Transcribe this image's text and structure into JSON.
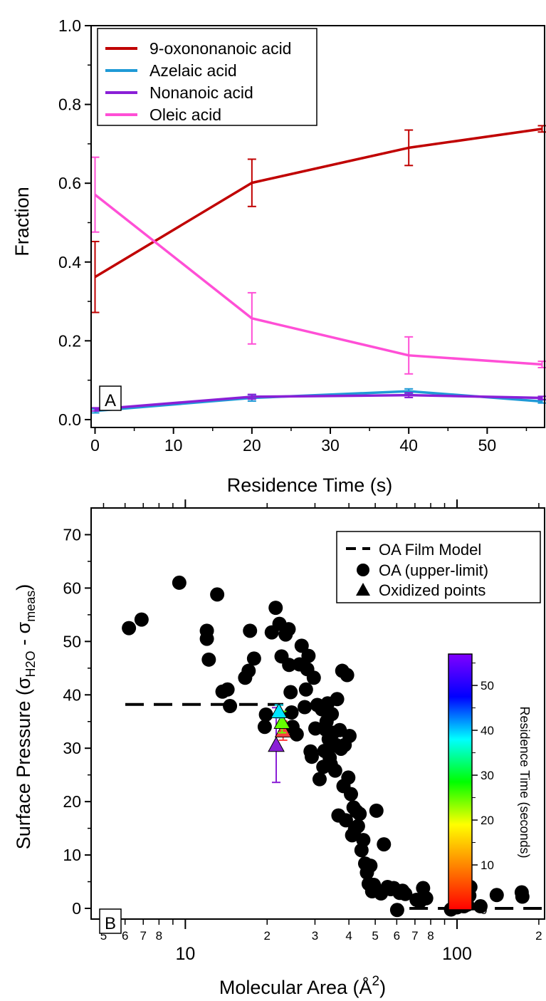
{
  "chart_data": [
    {
      "type": "line",
      "panel_label": "A",
      "xlabel": "Residence Time (s)",
      "ylabel": "Fraction",
      "xlim": [
        -0.5,
        57.5
      ],
      "ylim": [
        -0.02,
        1.0
      ],
      "xticks": [
        0,
        10,
        20,
        30,
        40,
        50
      ],
      "yticks": [
        0.0,
        0.2,
        0.4,
        0.6,
        0.8,
        1.0
      ],
      "yticklabels": [
        "0.0",
        "0.2",
        "0.4",
        "0.6",
        "0.8",
        "1.0"
      ],
      "legend_position": "top-left",
      "x": [
        0,
        20,
        40,
        57
      ],
      "series": [
        {
          "name": "9-oxononanoic acid",
          "color": "#c00000",
          "values": [
            0.362,
            0.601,
            0.69,
            0.738
          ],
          "errors": [
            0.09,
            0.06,
            0.045,
            0.008
          ]
        },
        {
          "name": "Azelaic acid",
          "color": "#1f9ad6",
          "values": [
            0.022,
            0.055,
            0.072,
            0.046
          ],
          "errors": [
            0.005,
            0.008,
            0.006,
            0.004
          ]
        },
        {
          "name": "Nonanoic acid",
          "color": "#8a1fd6",
          "values": [
            0.026,
            0.058,
            0.062,
            0.055
          ],
          "errors": [
            0.004,
            0.006,
            0.006,
            0.004
          ]
        },
        {
          "name": "Oleic acid",
          "color": "#ff4fd6",
          "values": [
            0.571,
            0.257,
            0.163,
            0.14
          ],
          "errors": [
            0.095,
            0.065,
            0.047,
            0.008
          ]
        }
      ]
    },
    {
      "type": "scatter",
      "panel_label": "B",
      "xlabel_prefix": "Molecular Area (Å",
      "xlabel_sup": "2",
      "xlabel_suffix": ")",
      "ylabel_prefix": "Surface Pressure (σ",
      "ylabel_sub1": "H2O",
      "ylabel_mid": " - σ",
      "ylabel_sub2": "meas",
      "ylabel_suffix": ")",
      "xscale": "log",
      "xlim": [
        4.5,
        210
      ],
      "ylim": [
        -2,
        75
      ],
      "yticks": [
        0,
        10,
        20,
        30,
        40,
        50,
        60,
        70
      ],
      "xticks_major": [
        {
          "v": 10,
          "label": "10"
        },
        {
          "v": 100,
          "label": "100"
        }
      ],
      "xticks_minor": [
        {
          "v": 5,
          "label": "5"
        },
        {
          "v": 6,
          "label": "6"
        },
        {
          "v": 7,
          "label": "7"
        },
        {
          "v": 8,
          "label": "8"
        },
        {
          "v": 20,
          "label": "2"
        },
        {
          "v": 30,
          "label": "3"
        },
        {
          "v": 40,
          "label": "4"
        },
        {
          "v": 50,
          "label": "5"
        },
        {
          "v": 60,
          "label": "6"
        },
        {
          "v": 70,
          "label": "7"
        },
        {
          "v": 80,
          "label": "8"
        },
        {
          "v": 200,
          "label": "2"
        }
      ],
      "xticks_minor_unlabeled": [
        9,
        90
      ],
      "legend": [
        "OA Film Model",
        "OA (upper-limit)",
        "Oxidized points"
      ],
      "legend_position": "top-right",
      "film_model": [
        {
          "x": [
            4.5,
            23.5
          ],
          "y": 38.2
        },
        {
          "x": [
            50,
            210
          ],
          "y": 0
        }
      ],
      "oa_points": [
        [
          6.2,
          52.5
        ],
        [
          6.9,
          54.1
        ],
        [
          9.5,
          61
        ],
        [
          12,
          52
        ],
        [
          12,
          50.5
        ],
        [
          12.2,
          46.6
        ],
        [
          13.1,
          58.8
        ],
        [
          13.7,
          40.6
        ],
        [
          14.3,
          41
        ],
        [
          14.6,
          37.9
        ],
        [
          16.6,
          43.2
        ],
        [
          17.1,
          44.5
        ],
        [
          17.3,
          52
        ],
        [
          17.9,
          46.8
        ],
        [
          19.6,
          34
        ],
        [
          19.8,
          36.3
        ],
        [
          20.8,
          51.7
        ],
        [
          21.5,
          56.3
        ],
        [
          22.2,
          53.3
        ],
        [
          22.6,
          47.2
        ],
        [
          23.4,
          51.3
        ],
        [
          24,
          52.3
        ],
        [
          24.1,
          45.6
        ],
        [
          24.4,
          40.5
        ],
        [
          24.6,
          36.7
        ],
        [
          24.8,
          34
        ],
        [
          25.7,
          32.6
        ],
        [
          26.3,
          45.7
        ],
        [
          26.8,
          49.2
        ],
        [
          27.5,
          37.7
        ],
        [
          27.8,
          41
        ],
        [
          28.1,
          44.8
        ],
        [
          28.4,
          47.3
        ],
        [
          28.9,
          29.4
        ],
        [
          29.2,
          28.4
        ],
        [
          29.7,
          43.2
        ],
        [
          30.1,
          33.7
        ],
        [
          30.6,
          38.1
        ],
        [
          31.2,
          24.2
        ],
        [
          31.8,
          37.3
        ],
        [
          32.2,
          26.5
        ],
        [
          32.5,
          29.5
        ],
        [
          32.8,
          33.5
        ],
        [
          33.1,
          35
        ],
        [
          33.4,
          38.4
        ],
        [
          33.7,
          31.7
        ],
        [
          34,
          28.2
        ],
        [
          34.3,
          27
        ],
        [
          34.6,
          36.4
        ],
        [
          35,
          32.9
        ],
        [
          35.3,
          30.5
        ],
        [
          35.6,
          25.8
        ],
        [
          35.9,
          30.6
        ],
        [
          36.2,
          39.2
        ],
        [
          36.6,
          17.4
        ],
        [
          37,
          33.4
        ],
        [
          37.4,
          29.9
        ],
        [
          37.8,
          44.5
        ],
        [
          38.2,
          22.9
        ],
        [
          38.6,
          30.6
        ],
        [
          39,
          16.5
        ],
        [
          39.4,
          43.7
        ],
        [
          39.8,
          24.5
        ],
        [
          40.2,
          32.3
        ],
        [
          40.7,
          21.4
        ],
        [
          41.1,
          13.7
        ],
        [
          41.6,
          18.9
        ],
        [
          42.1,
          14.8
        ],
        [
          42.6,
          18.2
        ],
        [
          43.2,
          15.4
        ],
        [
          43.8,
          17.7
        ],
        [
          44.5,
          10.9
        ],
        [
          45.2,
          12.8
        ],
        [
          45.9,
          8.4
        ],
        [
          46.6,
          6.7
        ],
        [
          47.3,
          4.6
        ],
        [
          48,
          8
        ],
        [
          48.7,
          3.2
        ],
        [
          49.4,
          4.4
        ],
        [
          50.5,
          18.3
        ],
        [
          52.5,
          2.8
        ],
        [
          53.8,
          12
        ],
        [
          55.5,
          4
        ],
        [
          57,
          3.6
        ],
        [
          58.5,
          3.8
        ],
        [
          60.2,
          -0.3
        ],
        [
          61.5,
          2.9
        ],
        [
          63,
          3.3
        ],
        [
          64.5,
          2.7
        ],
        [
          71,
          1.6
        ],
        [
          73,
          1.3
        ],
        [
          75,
          3.8
        ],
        [
          77,
          1.9
        ],
        [
          95,
          -0.2
        ],
        [
          100,
          0.2
        ],
        [
          106,
          0.4
        ],
        [
          109,
          0.7
        ],
        [
          111,
          2.4
        ],
        [
          112,
          4
        ],
        [
          122,
          0.4
        ],
        [
          140,
          2.5
        ],
        [
          173,
          3
        ],
        [
          174,
          2.2
        ]
      ],
      "oxidized_points": [
        {
          "x": 21.6,
          "y": 30.6,
          "color": "#8a1fd6",
          "error": 7,
          "residence_time": 57
        },
        {
          "x": 22.9,
          "y": 33.3,
          "color": "#ff4040",
          "error": 1.8,
          "residence_time": 0
        },
        {
          "x": 22.7,
          "y": 34.9,
          "color": "#66ff00",
          "error": 2,
          "residence_time": 20
        },
        {
          "x": 22.1,
          "y": 36.9,
          "color": "#00e5ff",
          "error": 1.2,
          "residence_time": 40
        }
      ],
      "colorbar": {
        "label": "Residence Time (seconds)",
        "range": [
          0,
          57
        ],
        "ticks": [
          0,
          10,
          20,
          30,
          40,
          50
        ],
        "colors": [
          "#ff0000",
          "#ff8000",
          "#ffff00",
          "#00ff00",
          "#00ffff",
          "#0000ff",
          "#8000ff"
        ]
      }
    }
  ]
}
